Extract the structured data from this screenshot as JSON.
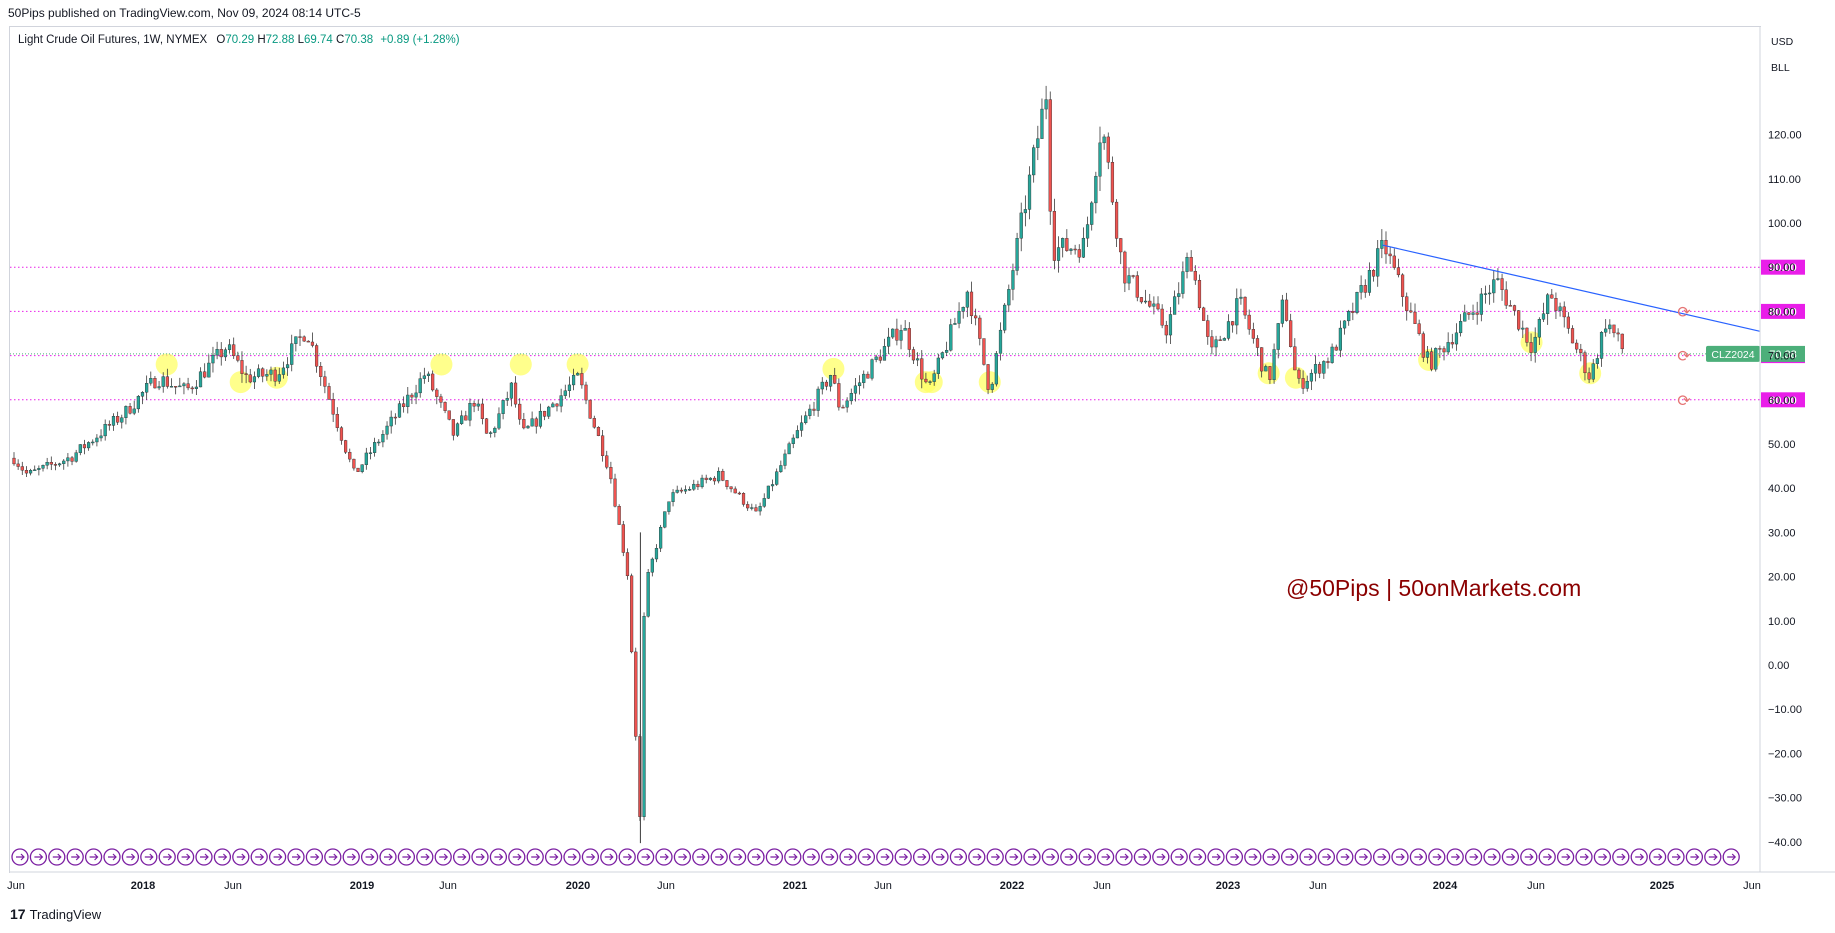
{
  "header": {
    "publisher_text": "50Pips published on TradingView.com, Nov 09, 2024 08:14 UTC-5"
  },
  "legend": {
    "symbol": "Light Crude Oil Futures, 1W, NYMEX",
    "open_label": "O",
    "open": "70.29",
    "high_label": "H",
    "high": "72.88",
    "low_label": "L",
    "low": "69.74",
    "close_label": "C",
    "close": "70.38",
    "change": "+0.89 (+1.28%)"
  },
  "price_scale": {
    "currency": "USD",
    "unit": "BLL"
  },
  "watermark": "@50Pips | 50onMarkets.com",
  "footer": {
    "brand": "TradingView",
    "logo_glyph": "17"
  },
  "last_price": {
    "ticker": "CLZ2024",
    "value": "70.38"
  },
  "colors": {
    "up": "#26a69a",
    "down": "#ef5350",
    "level_line": "#e91ee9",
    "trendline": "#2962ff",
    "watermark": "#8b0000",
    "marker": "#ffff66",
    "last_price_bg": "#4caf7a",
    "event_icon": "#7b1fa2"
  },
  "chart_data": {
    "type": "candlestick",
    "title": "Light Crude Oil Futures, 1W, NYMEX",
    "interval": "1W",
    "y_axis": {
      "unit": "USD",
      "ylim": [
        -47,
        133
      ],
      "ticks": [
        "120.00",
        "110.00",
        "100.00",
        "90.00",
        "80.00",
        "70.00",
        "60.00",
        "50.00",
        "40.00",
        "30.00",
        "20.00",
        "10.00",
        "0.00",
        "−10.00",
        "−20.00",
        "−30.00",
        "−40.00"
      ]
    },
    "x_axis": {
      "ticks": [
        "Jun",
        "2018",
        "Jun",
        "2019",
        "Jun",
        "2020",
        "Jun",
        "2021",
        "Jun",
        "2022",
        "Jun",
        "2023",
        "Jun",
        "2024",
        "Jun",
        "2025",
        "Jun"
      ]
    },
    "horizontal_levels": [
      {
        "value": 90,
        "label": "90.00"
      },
      {
        "value": 80,
        "label": "80.00"
      },
      {
        "value": 70,
        "label": "70.00"
      },
      {
        "value": 60,
        "label": "60.00"
      }
    ],
    "trendline": {
      "from": {
        "date": "2023-09-25",
        "price": 95.0
      },
      "to": {
        "date": "2025-07-01",
        "price": 75.5
      }
    },
    "support_touch_markers": [
      {
        "date": "2018-02-10",
        "price": 68
      },
      {
        "date": "2018-06-15",
        "price": 64
      },
      {
        "date": "2018-08-15",
        "price": 65
      },
      {
        "date": "2019-05-20",
        "price": 68
      },
      {
        "date": "2019-10-01",
        "price": 68
      },
      {
        "date": "2020-01-05",
        "price": 68
      },
      {
        "date": "2021-03-12",
        "price": 67
      },
      {
        "date": "2021-08-15",
        "price": 64
      },
      {
        "date": "2021-08-25",
        "price": 64
      },
      {
        "date": "2021-12-01",
        "price": 64
      },
      {
        "date": "2023-03-17",
        "price": 66
      },
      {
        "date": "2023-05-02",
        "price": 65
      },
      {
        "date": "2023-12-13",
        "price": 69
      },
      {
        "date": "2024-06-03",
        "price": 73
      },
      {
        "date": "2024-09-10",
        "price": 66
      }
    ],
    "price_path_anchors": [
      [
        "2017-05-15",
        49
      ],
      [
        "2017-06-20",
        43
      ],
      [
        "2017-09-01",
        47
      ],
      [
        "2017-12-01",
        57
      ],
      [
        "2018-01-25",
        65
      ],
      [
        "2018-03-15",
        62
      ],
      [
        "2018-05-22",
        72
      ],
      [
        "2018-06-25",
        65
      ],
      [
        "2018-08-15",
        66
      ],
      [
        "2018-10-04",
        76
      ],
      [
        "2018-12-24",
        43
      ],
      [
        "2019-04-23",
        66
      ],
      [
        "2019-06-10",
        52
      ],
      [
        "2019-07-15",
        60
      ],
      [
        "2019-08-07",
        51
      ],
      [
        "2019-09-16",
        63
      ],
      [
        "2019-10-03",
        52
      ],
      [
        "2020-01-06",
        65
      ],
      [
        "2020-02-28",
        44
      ],
      [
        "2020-03-30",
        20
      ],
      [
        "2020-04-20",
        -37
      ],
      [
        "2020-04-27",
        17
      ],
      [
        "2020-06-08",
        38
      ],
      [
        "2020-08-31",
        43
      ],
      [
        "2020-11-02",
        34
      ],
      [
        "2021-01-08",
        52
      ],
      [
        "2021-03-08",
        66
      ],
      [
        "2021-03-23",
        58
      ],
      [
        "2021-07-06",
        77
      ],
      [
        "2021-08-20",
        62
      ],
      [
        "2021-10-25",
        85
      ],
      [
        "2021-12-01",
        62
      ],
      [
        "2022-03-07",
        130
      ],
      [
        "2022-03-16",
        94
      ],
      [
        "2022-05-10",
        95
      ],
      [
        "2022-06-08",
        123
      ],
      [
        "2022-07-14",
        89
      ],
      [
        "2022-09-26",
        76
      ],
      [
        "2022-11-04",
        93
      ],
      [
        "2022-12-09",
        70
      ],
      [
        "2023-01-27",
        82
      ],
      [
        "2023-03-17",
        64
      ],
      [
        "2023-04-12",
        83
      ],
      [
        "2023-05-04",
        63
      ],
      [
        "2023-06-30",
        70
      ],
      [
        "2023-09-28",
        95
      ],
      [
        "2023-12-13",
        68
      ],
      [
        "2024-04-05",
        87
      ],
      [
        "2024-06-04",
        72
      ],
      [
        "2024-07-05",
        84
      ],
      [
        "2024-09-10",
        65
      ],
      [
        "2024-10-07",
        78
      ],
      [
        "2024-11-08",
        70.38
      ]
    ]
  }
}
